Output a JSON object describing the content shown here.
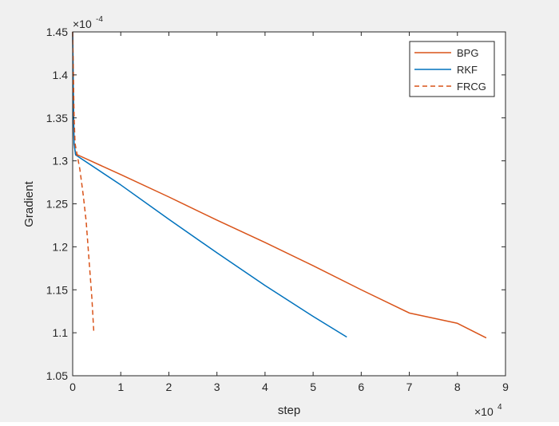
{
  "chart_data": {
    "type": "line",
    "title": "",
    "xlabel": "step",
    "ylabel": "Gradient",
    "x_exponent_label": "×10",
    "x_exponent": "4",
    "y_exponent_label": "×10",
    "y_exponent": "-4",
    "xlim": [
      0,
      90000
    ],
    "ylim": [
      0.000105,
      0.000145
    ],
    "x_ticks": [
      0,
      10000,
      20000,
      30000,
      40000,
      50000,
      60000,
      70000,
      80000,
      90000
    ],
    "x_tick_labels": [
      "0",
      "1",
      "2",
      "3",
      "4",
      "5",
      "6",
      "7",
      "8",
      "9"
    ],
    "y_ticks": [
      0.000105,
      0.00011,
      0.000115,
      0.00012,
      0.000125,
      0.00013,
      0.000135,
      0.00014,
      0.000145
    ],
    "y_tick_labels": [
      "1.05",
      "1.1",
      "1.15",
      "1.2",
      "1.25",
      "1.3",
      "1.35",
      "1.4",
      "1.45"
    ],
    "grid": false,
    "legend_position": "top-right",
    "series": [
      {
        "name": "BPG",
        "color": "#d95319",
        "style": "solid",
        "points": [
          [
            0,
            0.000145
          ],
          [
            100,
            0.00014
          ],
          [
            200,
            0.000135
          ],
          [
            300,
            0.000132
          ],
          [
            600,
            0.0001308
          ],
          [
            10000,
            0.0001284
          ],
          [
            20000,
            0.0001258
          ],
          [
            30000,
            0.0001231
          ],
          [
            40000,
            0.0001205
          ],
          [
            50000,
            0.0001178
          ],
          [
            60000,
            0.000115
          ],
          [
            70000,
            0.0001123
          ],
          [
            80000,
            0.0001111
          ],
          [
            86000,
            0.0001094
          ]
        ]
      },
      {
        "name": "RKF",
        "color": "#0072bd",
        "style": "solid",
        "points": [
          [
            0,
            0.000145
          ],
          [
            100,
            0.00014
          ],
          [
            200,
            0.000135
          ],
          [
            300,
            0.000132
          ],
          [
            600,
            0.0001307
          ],
          [
            10000,
            0.0001272
          ],
          [
            20000,
            0.0001232
          ],
          [
            30000,
            0.0001193
          ],
          [
            40000,
            0.0001155
          ],
          [
            50000,
            0.0001119
          ],
          [
            57000,
            0.0001095
          ]
        ]
      },
      {
        "name": "FRCG",
        "color": "#d95319",
        "style": "dashed",
        "points": [
          [
            0,
            0.000145
          ],
          [
            150,
            0.00014
          ],
          [
            300,
            0.000135
          ],
          [
            500,
            0.000132
          ],
          [
            1000,
            0.0001305
          ],
          [
            1500,
            0.000129
          ],
          [
            2200,
            0.000126
          ],
          [
            2800,
            0.000123
          ],
          [
            3200,
            0.00012
          ],
          [
            3600,
            0.000117
          ],
          [
            4000,
            0.000114
          ],
          [
            4400,
            0.00011
          ]
        ]
      }
    ]
  }
}
